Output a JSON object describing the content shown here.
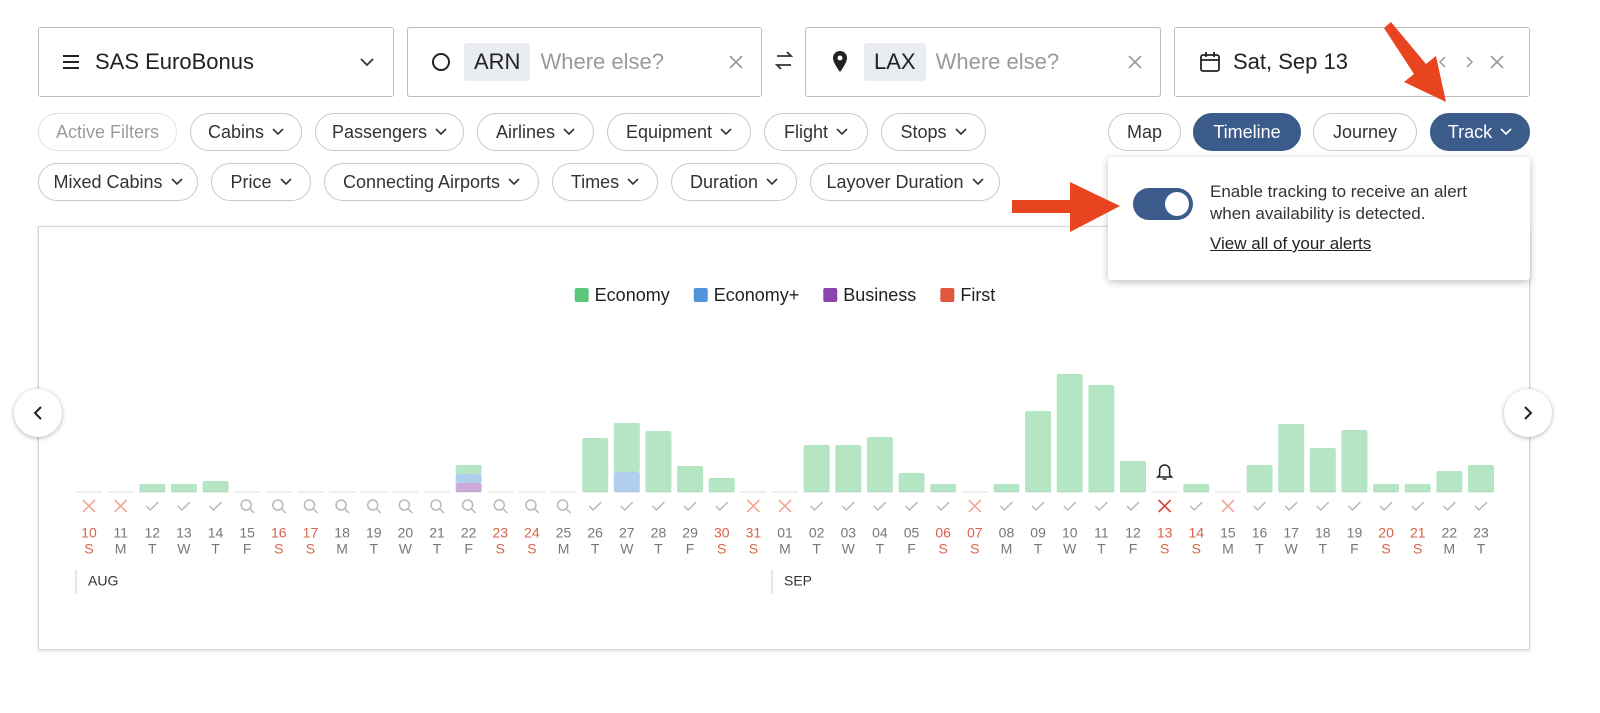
{
  "header": {
    "program": "SAS EuroBonus",
    "origin": {
      "code": "ARN",
      "placeholder": "Where else?"
    },
    "destination": {
      "code": "LAX",
      "placeholder": "Where else?"
    },
    "date": "Sat, Sep 13"
  },
  "filters": {
    "row1": [
      "Active Filters",
      "Cabins",
      "Passengers",
      "Airlines",
      "Equipment",
      "Flight",
      "Stops"
    ],
    "row2": [
      "Mixed Cabins",
      "Price",
      "Connecting Airports",
      "Times",
      "Duration",
      "Layover Duration"
    ]
  },
  "views": [
    "Map",
    "Timeline",
    "Journey",
    "Track"
  ],
  "tracking": {
    "message": "Enable tracking to receive an alert when availability is detected.",
    "link": "View all of your alerts",
    "enabled": true
  },
  "chart_data": {
    "type": "bar",
    "stacked": true,
    "categories": [
      "10",
      "11",
      "12",
      "13",
      "14",
      "15",
      "16",
      "17",
      "18",
      "19",
      "20",
      "21",
      "22",
      "23",
      "24",
      "25",
      "26",
      "27",
      "28",
      "29",
      "30",
      "31",
      "01",
      "02",
      "03",
      "04",
      "05",
      "06",
      "07",
      "08",
      "09",
      "10",
      "11",
      "12",
      "13",
      "14",
      "15",
      "16",
      "17",
      "18",
      "19",
      "20",
      "21",
      "22",
      "23"
    ],
    "weekdays": [
      "S",
      "M",
      "T",
      "W",
      "T",
      "F",
      "S",
      "S",
      "M",
      "T",
      "W",
      "T",
      "F",
      "S",
      "S",
      "M",
      "T",
      "W",
      "T",
      "F",
      "S",
      "S",
      "M",
      "T",
      "W",
      "T",
      "F",
      "S",
      "S",
      "M",
      "T",
      "W",
      "T",
      "F",
      "S",
      "S",
      "M",
      "T",
      "W",
      "T",
      "F",
      "S",
      "S",
      "M",
      "T"
    ],
    "months": [
      "AUG",
      "SEP"
    ],
    "status": [
      "x",
      "x",
      "check",
      "check",
      "check",
      "search",
      "search",
      "search",
      "search",
      "search",
      "search",
      "search",
      "search",
      "search",
      "search",
      "search",
      "check",
      "check",
      "check",
      "check",
      "check",
      "x",
      "x",
      "check",
      "check",
      "check",
      "check",
      "check",
      "x",
      "check",
      "check",
      "check",
      "check",
      "check",
      "selected",
      "check",
      "x",
      "check",
      "check",
      "check",
      "check",
      "check",
      "check",
      "check",
      "check"
    ],
    "ylim": [
      0,
      120
    ],
    "series": [
      {
        "name": "Economy",
        "color": "#5cc77a",
        "values": [
          0,
          0,
          8,
          8,
          11,
          0,
          0,
          0,
          0,
          0,
          0,
          0,
          9,
          0,
          0,
          0,
          54,
          49,
          61,
          26,
          14,
          0,
          0,
          47,
          47,
          55,
          19,
          8,
          0,
          8,
          81,
          118,
          107,
          31,
          0,
          8,
          0,
          27,
          68,
          44,
          62,
          8,
          8,
          21,
          27
        ]
      },
      {
        "name": "Economy+",
        "color": "#4f94dc",
        "values": [
          0,
          0,
          0,
          0,
          0,
          0,
          0,
          0,
          0,
          0,
          0,
          0,
          9,
          0,
          0,
          0,
          0,
          20,
          0,
          0,
          0,
          0,
          0,
          0,
          0,
          0,
          0,
          0,
          0,
          0,
          0,
          0,
          0,
          0,
          0,
          0,
          0,
          0,
          0,
          0,
          0,
          0,
          0,
          0,
          0
        ]
      },
      {
        "name": "Business",
        "color": "#8e44ad",
        "values": [
          0,
          0,
          0,
          0,
          0,
          0,
          0,
          0,
          0,
          0,
          0,
          0,
          9,
          0,
          0,
          0,
          0,
          0,
          0,
          0,
          0,
          0,
          0,
          0,
          0,
          0,
          0,
          0,
          0,
          0,
          0,
          0,
          0,
          0,
          0,
          0,
          0,
          0,
          0,
          0,
          0,
          0,
          0,
          0,
          0
        ]
      },
      {
        "name": "First",
        "color": "#e0573c",
        "values": [
          0,
          0,
          0,
          0,
          0,
          0,
          0,
          0,
          0,
          0,
          0,
          0,
          0,
          0,
          0,
          0,
          0,
          0,
          0,
          0,
          0,
          0,
          0,
          0,
          0,
          0,
          0,
          0,
          0,
          0,
          0,
          0,
          0,
          0,
          0,
          0,
          0,
          0,
          0,
          0,
          0,
          0,
          0,
          0,
          0
        ]
      }
    ]
  }
}
